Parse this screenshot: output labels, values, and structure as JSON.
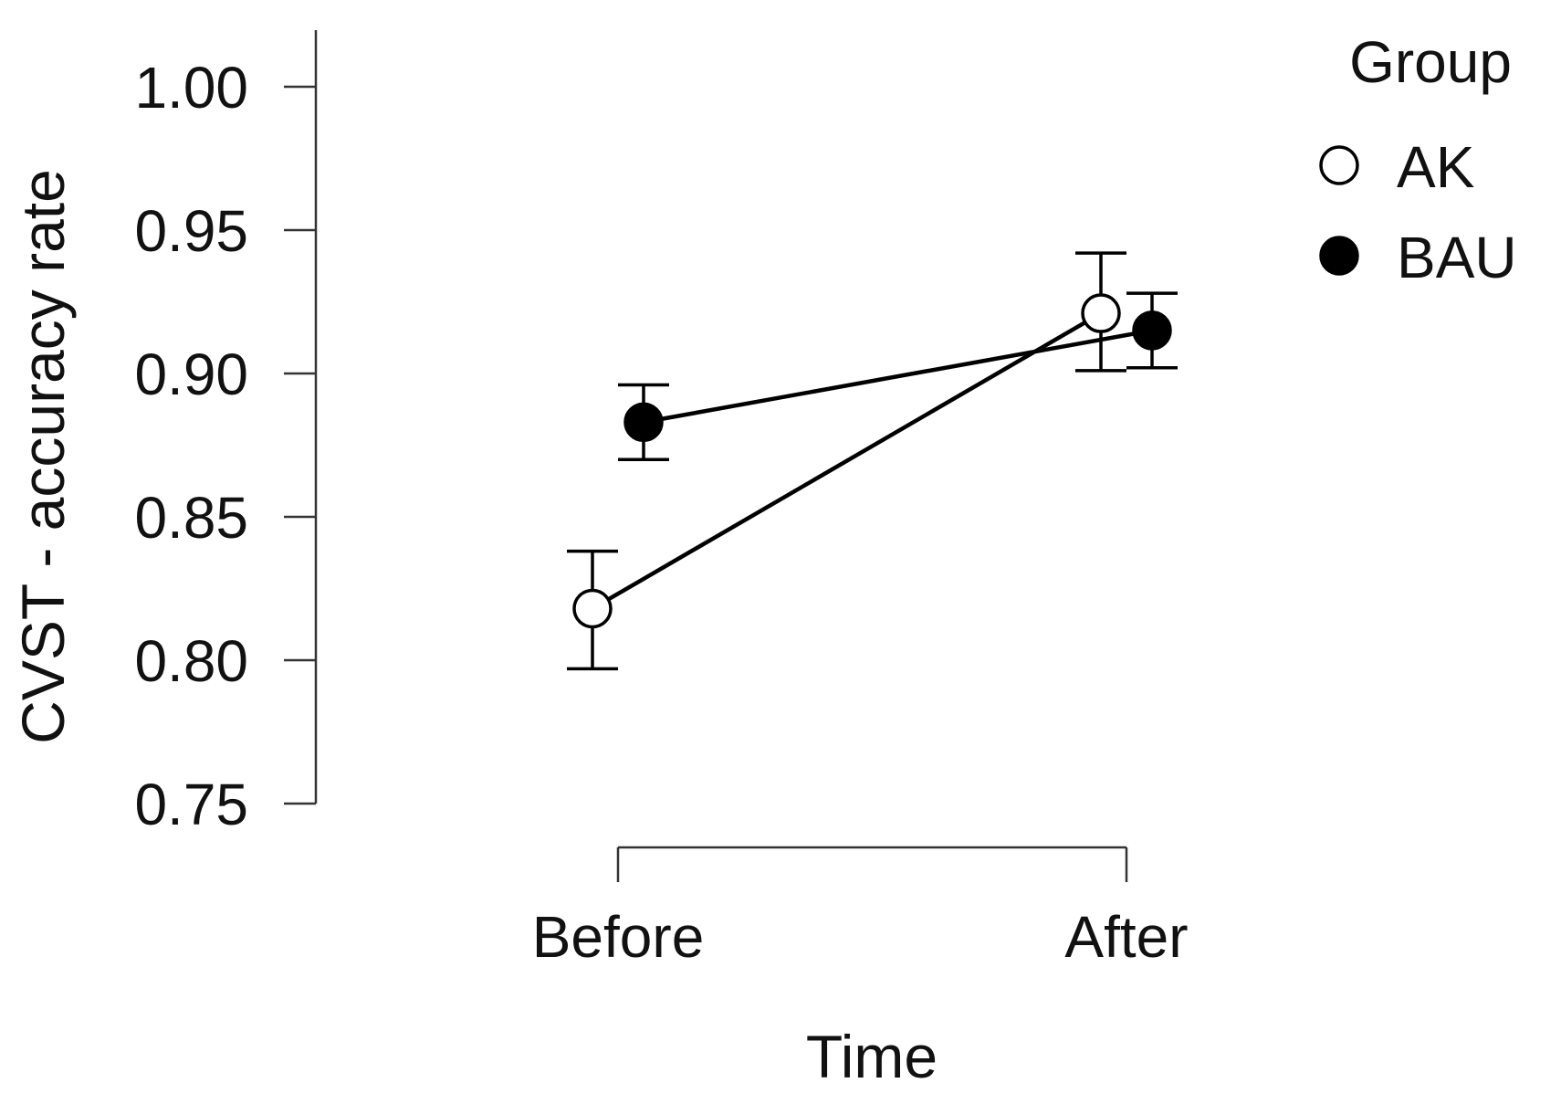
{
  "chart_data": {
    "type": "line",
    "xlabel": "Time",
    "ylabel": "CVST - accuracy rate",
    "categories": [
      "Before",
      "After"
    ],
    "ylim": [
      0.75,
      1.0
    ],
    "yticks": [
      "0.75",
      "0.80",
      "0.85",
      "0.90",
      "0.95",
      "1.00"
    ],
    "legend": {
      "title": "Group",
      "position": "top-right"
    },
    "series": [
      {
        "name": "AK",
        "marker": "open-circle",
        "fill": "#ffffff",
        "values": [
          0.818,
          0.921
        ],
        "error_low": [
          0.797,
          0.901
        ],
        "error_high": [
          0.838,
          0.942
        ]
      },
      {
        "name": "BAU",
        "marker": "filled-circle",
        "fill": "#000000",
        "values": [
          0.883,
          0.915
        ],
        "error_low": [
          0.87,
          0.902
        ],
        "error_high": [
          0.896,
          0.928
        ]
      }
    ]
  }
}
